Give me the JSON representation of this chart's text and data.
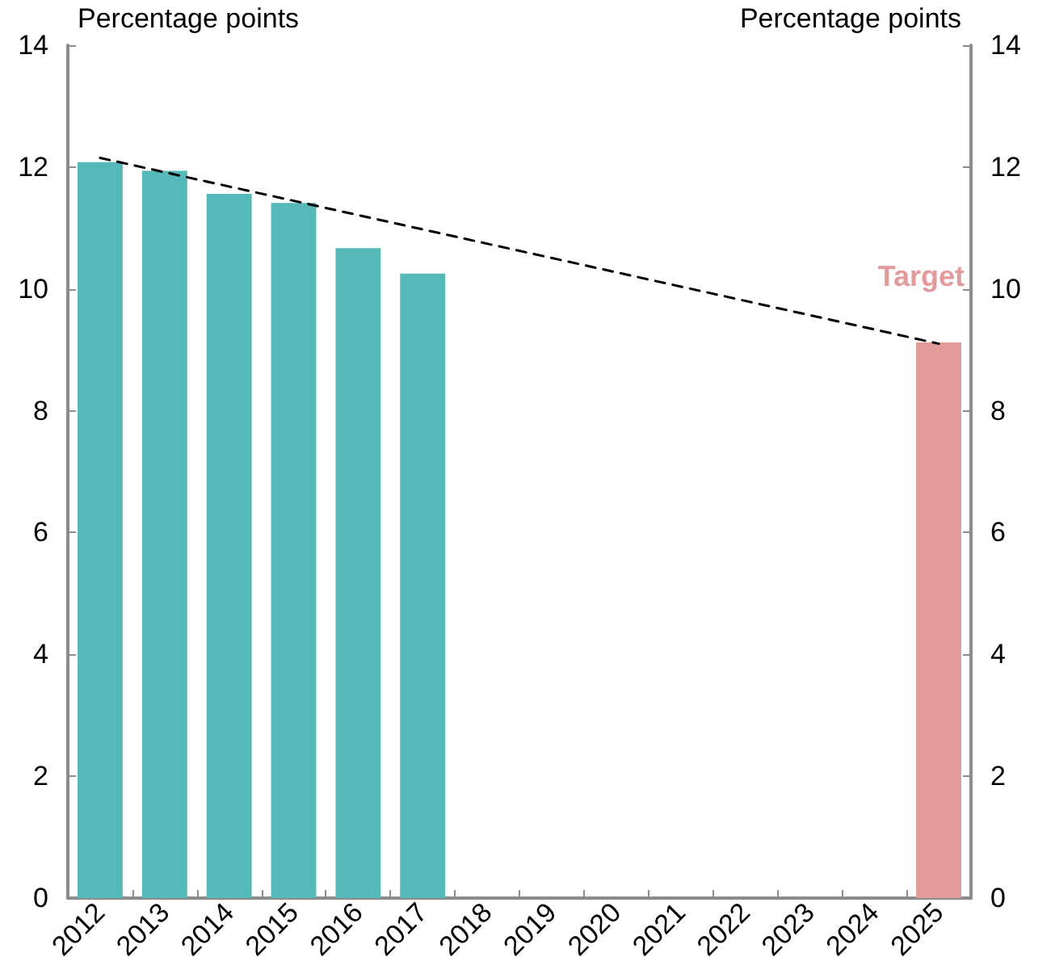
{
  "chart_data": {
    "type": "bar",
    "categories": [
      "2012",
      "2013",
      "2014",
      "2015",
      "2016",
      "2017",
      "2018",
      "2019",
      "2020",
      "2021",
      "2022",
      "2023",
      "2024",
      "2025"
    ],
    "series": [
      {
        "values": [
          12.08,
          11.94,
          11.56,
          11.41,
          10.67,
          10.25,
          null,
          null,
          null,
          null,
          null,
          null,
          null,
          9.12
        ],
        "colors": [
          "#56b8b9",
          "#56b8b9",
          "#56b8b9",
          "#56b8b9",
          "#56b8b9",
          "#56b8b9",
          "#56b8b9",
          "#56b8b9",
          "#56b8b9",
          "#56b8b9",
          "#56b8b9",
          "#56b8b9",
          "#56b8b9",
          "#e29a9b"
        ]
      },
      {
        "type": "line",
        "values": [
          12.15,
          null,
          null,
          null,
          null,
          null,
          null,
          null,
          null,
          null,
          null,
          null,
          null,
          9.1
        ],
        "color": "#000000",
        "line_style": "dashed",
        "marker": "none"
      }
    ],
    "ylabel": "Percentage points",
    "y2label": "Percentage points",
    "ylim": [
      0,
      14
    ],
    "yticks": [
      0,
      2,
      4,
      6,
      8,
      10,
      12,
      14
    ],
    "y2lim": [
      0,
      14
    ],
    "y2ticks": [
      0,
      2,
      4,
      6,
      8,
      10,
      12,
      14
    ],
    "annotations": [
      "Target"
    ],
    "grid": false
  }
}
